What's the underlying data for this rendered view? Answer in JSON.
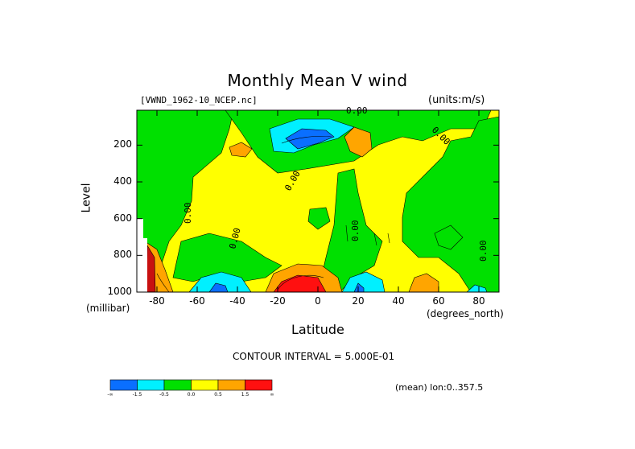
{
  "header": {
    "title": "Monthly Mean V wind",
    "dataset": "[VWND_1962-10_NCEP.nc]",
    "units": "(units:m/s)"
  },
  "axes": {
    "ylabel": "Level",
    "yunits": "(millibar)",
    "xlabel": "Latitude",
    "xunits": "(degrees_north)"
  },
  "footer": {
    "contour_interval": "CONTOUR INTERVAL = 5.000E-01",
    "mean_note": "(mean) lon:0..357.5"
  },
  "contour_labels": [
    "0.00",
    "0.00",
    "0.00",
    "0.00",
    "0.00",
    "0.00",
    "0.00"
  ],
  "colorbar": {
    "colors": [
      "#0a6fff",
      "#00f0ff",
      "#00e000",
      "#ffff00",
      "#ffa500",
      "#ff1010"
    ],
    "labels": [
      "-∞",
      "-1.5",
      "-0.5",
      "0.0",
      "0.5",
      "1.5",
      "∞"
    ]
  },
  "chart_data": {
    "type": "heatmap",
    "title": "Monthly Mean V wind",
    "xlabel": "Latitude",
    "ylabel": "Level",
    "x_units": "degrees_north",
    "y_units": "millibar",
    "xlim": [
      -90,
      90
    ],
    "ylim": [
      1000,
      10
    ],
    "x_ticks": [
      -80,
      -60,
      -40,
      -20,
      0,
      20,
      40,
      60,
      80
    ],
    "y_ticks": [
      200,
      400,
      600,
      800,
      1000
    ],
    "contour_interval": 0.5,
    "color_levels": [
      "-inf",
      -1.5,
      -0.5,
      0.0,
      0.5,
      1.5,
      "inf"
    ],
    "features": [
      {
        "label": "negative core",
        "lat": -10,
        "level": 150,
        "value_range": "< -1.5"
      },
      {
        "label": "positive core",
        "lat": -12,
        "level": 980,
        "value_range": "> 1.5"
      },
      {
        "label": "positive core",
        "lat": -85,
        "level": 900,
        "value_range": "> 1.5"
      },
      {
        "label": "negative region",
        "lat": -50,
        "level": 960,
        "value_range": "-1.5 to -0.5"
      },
      {
        "label": "negative region",
        "lat": 20,
        "level": 960,
        "value_range": "-1.5 to -0.5"
      },
      {
        "label": "positive region",
        "lat": 52,
        "level": 970,
        "value_range": "0.5 to 1.5"
      },
      {
        "label": "positive region",
        "lat": 18,
        "level": 180,
        "value_range": "0.5 to 1.5"
      }
    ]
  }
}
